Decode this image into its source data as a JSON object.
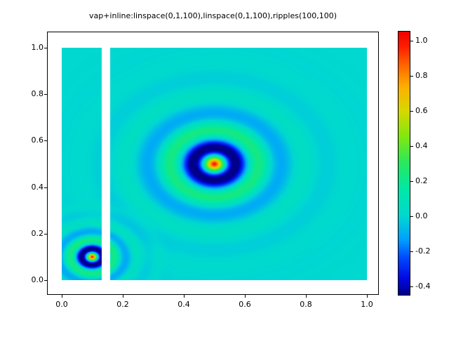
{
  "figure": {
    "background_color": "#ffffff",
    "text_color": "#000000"
  },
  "chart_data": {
    "type": "heatmap",
    "title": "vap+inline:linspace(0,1,100),linspace(0,1,100),ripples(100,100)",
    "xlabel": "",
    "ylabel": "",
    "grid": false,
    "legend": null,
    "x_axis": {
      "min": 0,
      "max": 1,
      "samples": 100,
      "tick_labels": [
        "0.0",
        "0.2",
        "0.4",
        "0.6",
        "0.8",
        "1.0"
      ],
      "tick_values": [
        0,
        0.2,
        0.4,
        0.6,
        0.8,
        1.0
      ]
    },
    "y_axis": {
      "min": 0,
      "max": 1,
      "samples": 100,
      "tick_labels": [
        "0.0",
        "0.2",
        "0.4",
        "0.6",
        "0.8",
        "1.0"
      ],
      "tick_values": [
        0,
        0.2,
        0.4,
        0.6,
        0.8,
        1.0
      ]
    },
    "surface": {
      "description": "ripples(100,100): sum of radially damped cosine ripples z = sum amplitude*cos(2*pi*r/period)*exp(-r/decay) over [0,1]x[0,1]; background value 0",
      "ripples": [
        {
          "center_x": 0.5,
          "center_y": 0.5,
          "amplitude": 1.0,
          "period": 0.15,
          "decay": 0.1
        },
        {
          "center_x": 0.1,
          "center_y": 0.1,
          "amplitude": 1.0,
          "period": 0.075,
          "decay": 0.05
        }
      ],
      "background_value": 0.0,
      "missing_column_x_range": [
        0.132,
        0.158
      ],
      "missing_color": "#ffffff"
    },
    "colorbar": {
      "position": "right",
      "vmin": -0.45,
      "vmax": 1.05,
      "tick_labels": [
        "1.0",
        "0.8",
        "0.6",
        "0.4",
        "0.2",
        "0.0",
        "-0.2",
        "-0.4"
      ],
      "tick_values": [
        1.0,
        0.8,
        0.6,
        0.4,
        0.2,
        0.0,
        -0.2,
        -0.4
      ]
    },
    "colormap": {
      "name": "jet-like-rainbow",
      "stops": [
        [
          0.0,
          "#000088"
        ],
        [
          0.06,
          "#0008e0"
        ],
        [
          0.14,
          "#0048ff"
        ],
        [
          0.21,
          "#00a0ff"
        ],
        [
          0.3,
          "#00d8d0"
        ],
        [
          0.4,
          "#00e8a8"
        ],
        [
          0.5,
          "#28e860"
        ],
        [
          0.6,
          "#80e810"
        ],
        [
          0.7,
          "#d8d800"
        ],
        [
          0.79,
          "#ffb000"
        ],
        [
          0.87,
          "#ff6800"
        ],
        [
          0.94,
          "#ff2000"
        ],
        [
          1.0,
          "#f00000"
        ]
      ]
    }
  }
}
